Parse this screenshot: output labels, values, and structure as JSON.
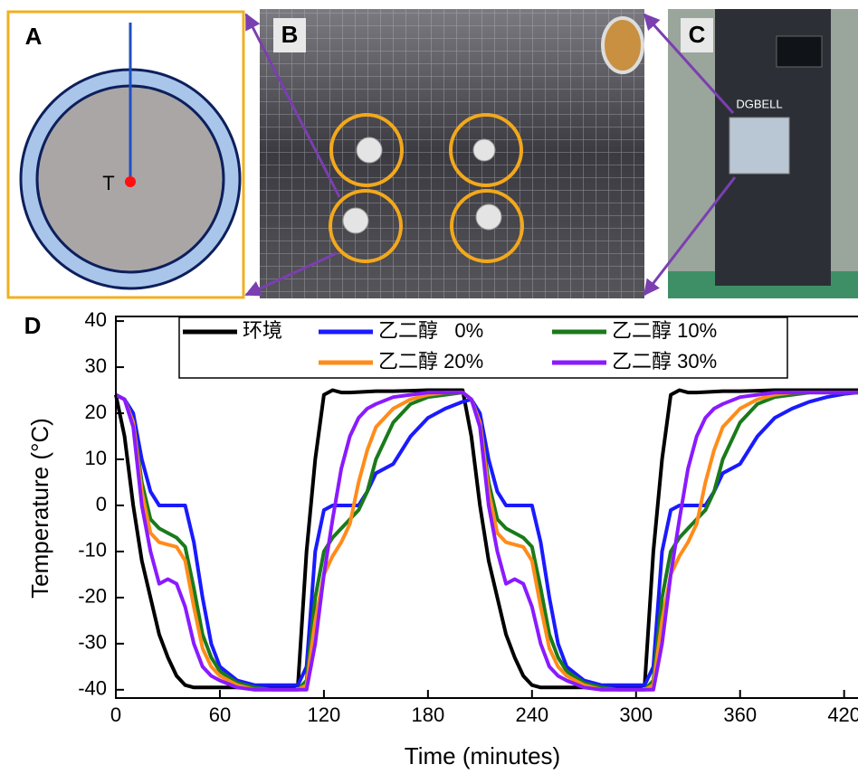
{
  "panels": {
    "a": {
      "label": "A",
      "marker": "T"
    },
    "b": {
      "label": "B"
    },
    "c": {
      "label": "C",
      "brand": "DGBELL"
    }
  },
  "chart_data": {
    "type": "line",
    "panel_label": "D",
    "x_label": "Time (minutes)",
    "y_label": "Temperature (°C)",
    "xlim": [
      0,
      428
    ],
    "ylim": [
      -41.8,
      41
    ],
    "xticks": [
      0,
      60,
      120,
      180,
      240,
      300,
      360,
      420
    ],
    "yticks": [
      -40,
      -30,
      -20,
      -10,
      0,
      10,
      20,
      30,
      40
    ],
    "x": [
      0,
      5,
      10,
      15,
      20,
      25,
      30,
      35,
      40,
      45,
      50,
      55,
      60,
      70,
      80,
      90,
      100,
      105,
      110,
      115,
      120,
      125,
      130,
      135,
      140,
      145,
      150,
      160,
      170,
      180,
      190,
      200,
      205,
      210,
      215,
      220,
      225,
      230,
      235,
      240,
      245,
      250,
      255,
      260,
      270,
      280,
      290,
      300,
      305,
      310,
      315,
      320,
      325,
      330,
      335,
      340,
      345,
      350,
      360,
      370,
      380,
      390,
      400,
      410,
      420,
      428
    ],
    "series": [
      {
        "name": "环境",
        "color": "#000000",
        "values": [
          24,
          15,
          0,
          -12,
          -20,
          -28,
          -33,
          -37,
          -39,
          -39.5,
          -39.5,
          -39.5,
          -39.5,
          -39.5,
          -39.5,
          -39.5,
          -39.5,
          -39,
          -10,
          10,
          24,
          25,
          24.5,
          24.5,
          24.6,
          24.7,
          24.8,
          24.8,
          24.9,
          25,
          25,
          25,
          15,
          0,
          -12,
          -20,
          -28,
          -33,
          -37,
          -39,
          -39.5,
          -39.5,
          -39.5,
          -39.5,
          -39.5,
          -39.5,
          -39.5,
          -39.5,
          -39,
          -10,
          10,
          24,
          25,
          24.5,
          24.5,
          24.6,
          24.7,
          24.8,
          24.8,
          24.9,
          25,
          25,
          25,
          25,
          25,
          25
        ]
      },
      {
        "name": "乙二醇   0%",
        "color": "#1a1aff",
        "values": [
          24,
          23,
          20,
          10,
          3,
          0,
          0,
          0,
          0,
          -8,
          -20,
          -30,
          -35,
          -38,
          -39,
          -39,
          -39,
          -39,
          -35,
          -10,
          -1,
          0,
          0,
          0,
          0,
          3,
          7,
          9,
          15,
          19,
          21,
          22.5,
          23,
          20,
          10,
          3,
          0,
          0,
          0,
          0,
          -8,
          -20,
          -30,
          -35,
          -38,
          -39,
          -39,
          -39,
          -39,
          -35,
          -10,
          -1,
          0,
          0,
          0,
          0,
          3,
          7,
          9,
          15,
          19,
          21,
          22.5,
          23.5,
          24.2,
          24.5
        ]
      },
      {
        "name": "乙二醇 10%",
        "color": "#1a7a1a",
        "values": [
          24,
          23,
          18,
          5,
          -3,
          -5,
          -6,
          -7,
          -9,
          -18,
          -28,
          -33,
          -36,
          -38.5,
          -39.5,
          -40,
          -40,
          -40,
          -38,
          -20,
          -10,
          -7,
          -5,
          -3,
          -1,
          3,
          10,
          18,
          22,
          23.5,
          24,
          24.5,
          23,
          18,
          5,
          -3,
          -5,
          -6,
          -7,
          -9,
          -18,
          -28,
          -33,
          -36,
          -38.5,
          -39.5,
          -40,
          -40,
          -40,
          -38,
          -20,
          -10,
          -7,
          -5,
          -3,
          -1,
          3,
          10,
          18,
          22,
          23.5,
          24,
          24.5,
          24.5,
          24.5,
          24.5
        ]
      },
      {
        "name": "乙二醇 20%",
        "color": "#ff8c1a",
        "values": [
          24,
          23,
          18,
          3,
          -6,
          -8,
          -8.5,
          -9,
          -12,
          -22,
          -31,
          -35,
          -37,
          -39,
          -40,
          -40,
          -40,
          -40,
          -39,
          -25,
          -15,
          -11,
          -8,
          -4,
          5,
          12,
          17,
          21,
          23,
          24,
          24.5,
          24.5,
          23,
          18,
          3,
          -6,
          -8,
          -8.5,
          -9,
          -12,
          -22,
          -31,
          -35,
          -37,
          -39,
          -40,
          -40,
          -40,
          -40,
          -39,
          -25,
          -15,
          -11,
          -8,
          -4,
          5,
          12,
          17,
          21,
          23,
          24,
          24.5,
          24.5,
          24.5,
          24.5,
          24.5
        ]
      },
      {
        "name": "乙二醇 30%",
        "color": "#8a1aff",
        "values": [
          24,
          23,
          17,
          0,
          -10,
          -17,
          -16,
          -17,
          -22,
          -30,
          -35,
          -37,
          -38,
          -39.5,
          -40,
          -40,
          -40,
          -40,
          -40,
          -30,
          -15,
          -3,
          8,
          15,
          19,
          21,
          22,
          23.5,
          24,
          24.5,
          24.5,
          24.5,
          23,
          17,
          0,
          -10,
          -17,
          -16,
          -17,
          -22,
          -30,
          -35,
          -37,
          -38,
          -39.5,
          -40,
          -40,
          -40,
          -40,
          -40,
          -30,
          -15,
          -3,
          8,
          15,
          19,
          21,
          22,
          23.5,
          24,
          24.5,
          24.5,
          24.5,
          24.5,
          24.5,
          24.5
        ]
      }
    ]
  }
}
